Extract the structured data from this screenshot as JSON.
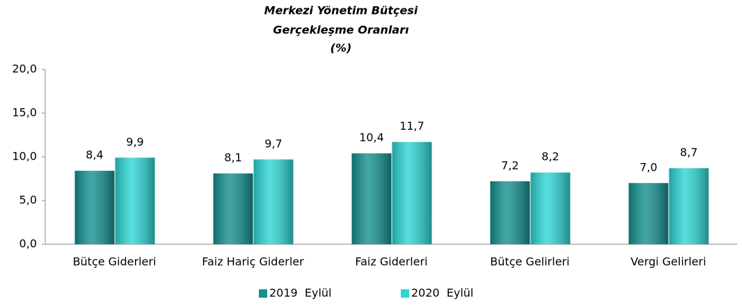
{
  "chart_data": {
    "type": "bar",
    "title": [
      "Merkezi Yönetim Bütçesi",
      "Gerçekleşme Oranları",
      "(%)"
    ],
    "categories": [
      "Bütçe Giderleri",
      "Faiz Hariç Giderler",
      "Faiz Giderleri",
      "Bütçe Gelirleri",
      "Vergi Gelirleri"
    ],
    "series": [
      {
        "name": "2019  Eylül",
        "color": "#13908f",
        "values": [
          8.4,
          8.1,
          10.4,
          7.2,
          7.0
        ],
        "value_labels": [
          "8,4",
          "8,1",
          "10,4",
          "7,2",
          "7,0"
        ]
      },
      {
        "name": "2020  Eylül",
        "color": "#2cd6d4",
        "values": [
          9.9,
          9.7,
          11.7,
          8.2,
          8.7
        ],
        "value_labels": [
          "9,9",
          "9,7",
          "11,7",
          "8,2",
          "8,7"
        ]
      }
    ],
    "ylim": [
      0,
      20
    ],
    "yticks": [
      {
        "value": 0,
        "label": "0,0"
      },
      {
        "value": 5,
        "label": "5,0"
      },
      {
        "value": 10,
        "label": "10,0"
      },
      {
        "value": 15,
        "label": "15,0"
      },
      {
        "value": 20,
        "label": "20,0"
      }
    ],
    "legend": "bottom"
  }
}
